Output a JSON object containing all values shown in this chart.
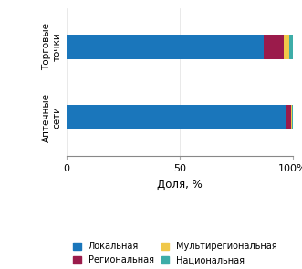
{
  "categories": [
    "Аптечные\nсети",
    "Торговые\nточки"
  ],
  "series": {
    "Локальная": [
      97.0,
      87.0
    ],
    "Региональная": [
      2.0,
      9.0
    ],
    "Мультирегиональная": [
      0.5,
      2.5
    ],
    "Национальная": [
      0.5,
      1.5
    ]
  },
  "colors": {
    "Локальная": "#1a76bb",
    "Региональная": "#9b1b4b",
    "Мультирегиональная": "#f0c84a",
    "Национальная": "#3dada8"
  },
  "xlabel": "Доля, %",
  "xlim": [
    0,
    100
  ],
  "xticks": [
    0,
    50,
    100
  ],
  "xticklabels": [
    "0",
    "50",
    "100%"
  ],
  "bar_height": 0.35,
  "background_color": "#ffffff",
  "legend_order": [
    "Локальная",
    "Региональная",
    "Мультирегиональная",
    "Национальная"
  ]
}
